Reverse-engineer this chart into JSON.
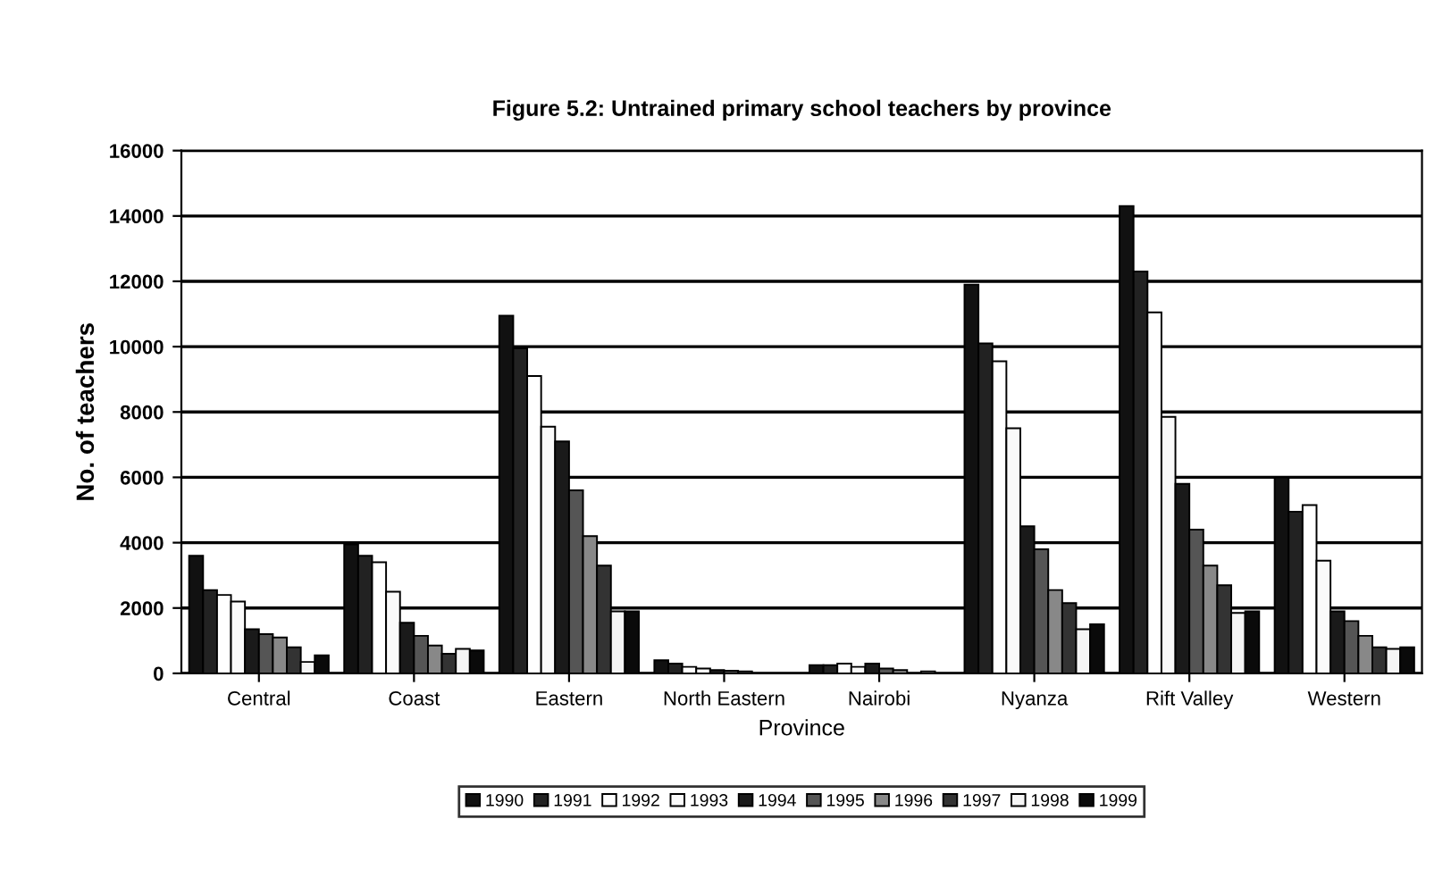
{
  "chart_data": {
    "type": "bar",
    "title": "Figure 5.2: Untrained primary school teachers by province",
    "xlabel": "Province",
    "ylabel": "No. of teachers",
    "categories": [
      "Central",
      "Coast",
      "Eastern",
      "North Eastern",
      "Nairobi",
      "Nyanza",
      "Rift Valley",
      "Western"
    ],
    "series": [
      {
        "name": "1990",
        "color": "#111111",
        "values": [
          3600,
          3950,
          10950,
          400,
          250,
          11900,
          14300,
          6000
        ]
      },
      {
        "name": "1991",
        "color": "#222222",
        "values": [
          2550,
          3600,
          9950,
          300,
          250,
          10100,
          12300,
          4950
        ]
      },
      {
        "name": "1992",
        "color": "#ffffff",
        "values": [
          2400,
          3400,
          9100,
          200,
          300,
          9550,
          11050,
          5150
        ]
      },
      {
        "name": "1993",
        "color": "#fafafa",
        "values": [
          2200,
          2500,
          7550,
          150,
          200,
          7500,
          7850,
          3450
        ]
      },
      {
        "name": "1994",
        "color": "#1a1a1a",
        "values": [
          1350,
          1550,
          7100,
          100,
          300,
          4500,
          5800,
          1900
        ]
      },
      {
        "name": "1995",
        "color": "#555555",
        "values": [
          1200,
          1150,
          5600,
          80,
          150,
          3800,
          4400,
          1600
        ]
      },
      {
        "name": "1996",
        "color": "#888888",
        "values": [
          1100,
          850,
          4200,
          60,
          100,
          2550,
          3300,
          1150
        ]
      },
      {
        "name": "1997",
        "color": "#333333",
        "values": [
          800,
          600,
          3300,
          null,
          null,
          2150,
          2700,
          800
        ]
      },
      {
        "name": "1998",
        "color": "#f5f5f5",
        "values": [
          350,
          750,
          1900,
          null,
          60,
          1350,
          1850,
          750
        ]
      },
      {
        "name": "1999",
        "color": "#0a0a0a",
        "values": [
          550,
          700,
          1900,
          null,
          null,
          1500,
          1900,
          800
        ]
      }
    ],
    "ylim": [
      0,
      16000
    ],
    "yticks": [
      0,
      2000,
      4000,
      6000,
      8000,
      10000,
      12000,
      14000,
      16000
    ],
    "grid": "y",
    "legend": "bottom"
  }
}
